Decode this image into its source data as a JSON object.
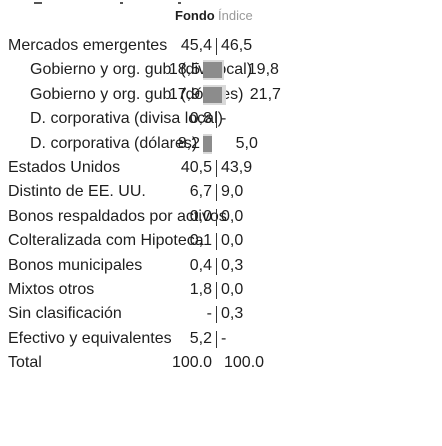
{
  "header": {
    "fund": "Fondo",
    "index": "Índice"
  },
  "rows": [
    {
      "label": "Mercados emergentes",
      "fund": "45,4",
      "index": "46,5",
      "sub_rows": [
        {
          "label": "Gobierno y org. gub. (div. local)",
          "fund": "18,5",
          "index": "19,8"
        },
        {
          "label": "Gobierno y org. gub. (dólares)",
          "fund": "17,9",
          "index": "21,7"
        },
        {
          "label": "D. corporativa (divisa local)",
          "fund": "0,8",
          "index": "-"
        },
        {
          "label": "D. corporativa (dólares)",
          "fund": "8,2",
          "index": "5,0"
        }
      ]
    },
    {
      "label": "Estados Unidos",
      "fund": "40,5",
      "index": "43,9"
    },
    {
      "label": "Distinto de EE. UU.",
      "fund": "6,7",
      "index": "9,0"
    },
    {
      "label": "Bonos respaldados por activos",
      "fund": "0,0",
      "index": "0,0"
    },
    {
      "label": "Colteralizada com Hipoteca",
      "fund": "0,1",
      "index": "0,0"
    },
    {
      "label": "Bonos municipales",
      "fund": "0,4",
      "index": "0,3"
    },
    {
      "label": "Mixtos otros",
      "fund": "1,8",
      "index": "0,0"
    },
    {
      "label": "Sin clasificación",
      "fund": "-",
      "index": "0,3"
    },
    {
      "label": "Efectivo y equivalentes",
      "fund": "5,2",
      "index": "-"
    }
  ],
  "total": {
    "label": "Total",
    "fund": "100.0",
    "index": "100.0"
  }
}
